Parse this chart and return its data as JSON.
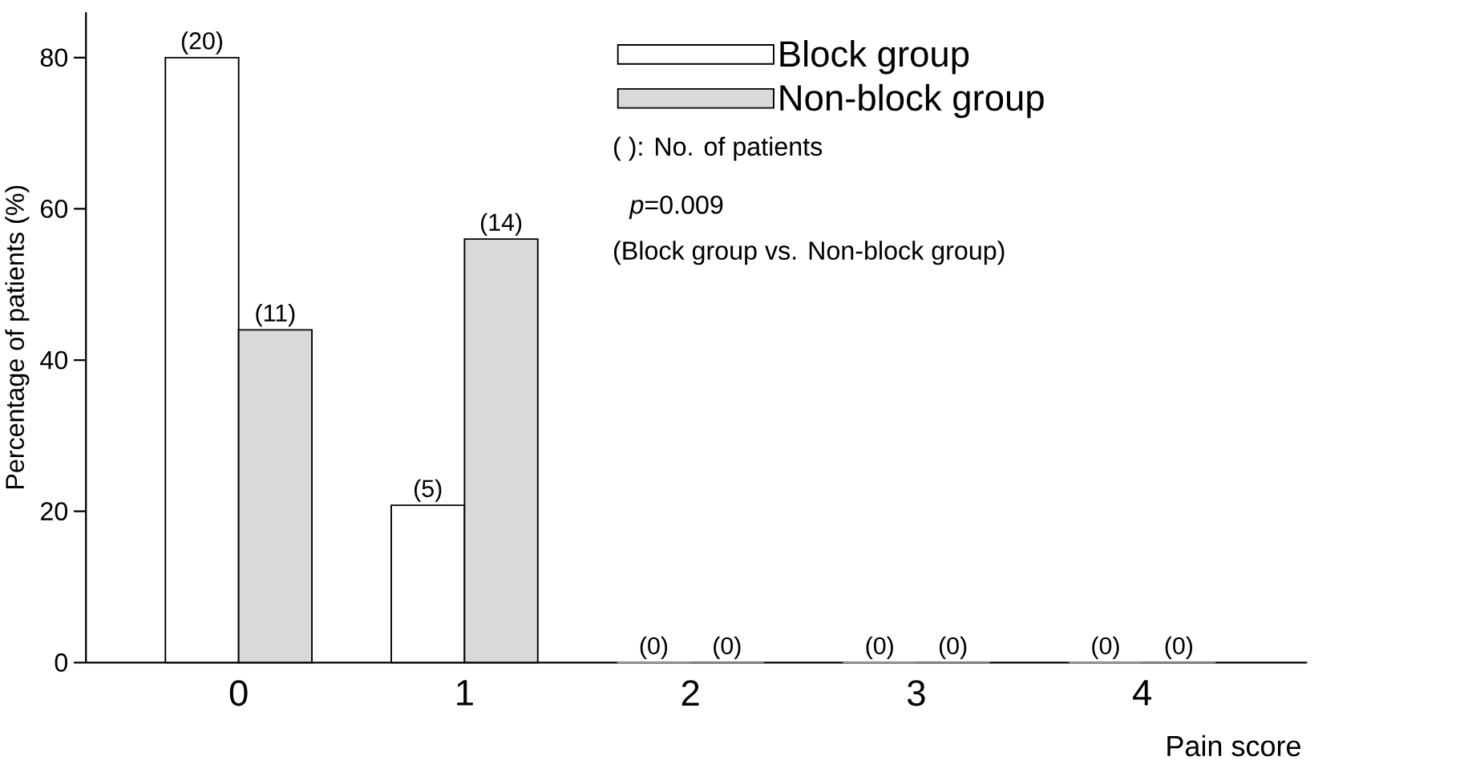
{
  "chart_data": {
    "type": "bar",
    "xlabel": "Pain score",
    "ylabel": "Percentage of patients (%)",
    "categories": [
      "0",
      "1",
      "2",
      "3",
      "4"
    ],
    "series": [
      {
        "name": "Block group",
        "color": "#ffffff",
        "values": [
          80,
          20.8,
          0,
          0,
          0
        ]
      },
      {
        "name": "Non-block group",
        "color": "#d9d9d9",
        "values": [
          44,
          56,
          0,
          0,
          0
        ]
      }
    ],
    "ylim": [
      0,
      86
    ],
    "yticks": [
      0,
      20,
      40,
      60,
      80
    ],
    "grid": false,
    "legend": "top right",
    "annotations": [
      "( ): No. of patients",
      "*p*=0.009",
      "(Block group vs. Non-block group)",
      {
        "text": "(20)",
        "x": "0",
        "y": 80
      },
      {
        "text": "(11)",
        "x": "0",
        "y": 44
      },
      {
        "text": "(5)",
        "x": "1",
        "y": 20.8
      },
      {
        "text": "(14)",
        "x": "1",
        "y": 56
      },
      {
        "text": "(0)",
        "x": "2",
        "y": 0
      },
      {
        "text": "(0)",
        "x": "2",
        "y": 0
      },
      {
        "text": "(0)",
        "x": "3",
        "y": 0
      },
      {
        "text": "(0)",
        "x": "3",
        "y": 0
      },
      {
        "text": "(0)",
        "x": "4",
        "y": 0
      },
      {
        "text": "(0)",
        "x": "4",
        "y": 0
      }
    ]
  }
}
